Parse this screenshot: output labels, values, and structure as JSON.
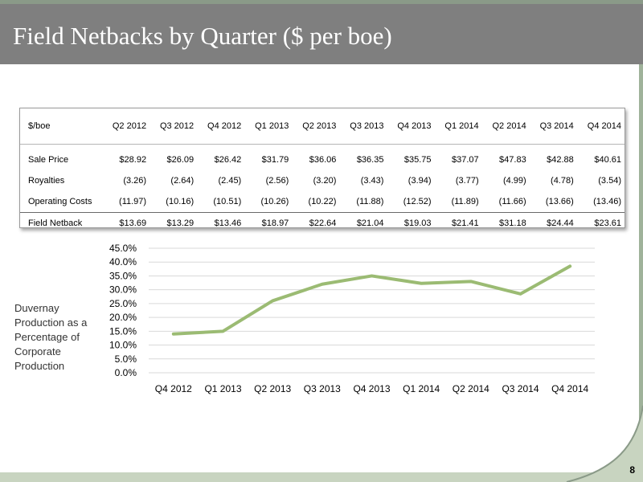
{
  "title": "Field Netbacks by Quarter ($ per boe)",
  "page_number": "8",
  "table": {
    "corner_label": "$/boe",
    "columns": [
      "Q2 2012",
      "Q3 2012",
      "Q4 2012",
      "Q1 2013",
      "Q2 2013",
      "Q3 2013",
      "Q4 2013",
      "Q1 2014",
      "Q2 2014",
      "Q3 2014",
      "Q4 2014"
    ],
    "rows": [
      {
        "label": "Sale Price",
        "values": [
          "$28.92",
          "$26.09",
          "$26.42",
          "$31.79",
          "$36.06",
          "$36.35",
          "$35.75",
          "$37.07",
          "$47.83",
          "$42.88",
          "$40.61"
        ]
      },
      {
        "label": "Royalties",
        "values": [
          "(3.26)",
          "(2.64)",
          "(2.45)",
          "(2.56)",
          "(3.20)",
          "(3.43)",
          "(3.94)",
          "(3.77)",
          "(4.99)",
          "(4.78)",
          "(3.54)"
        ]
      },
      {
        "label": "Operating Costs",
        "values": [
          "(11.97)",
          "(10.16)",
          "(10.51)",
          "(10.26)",
          "(10.22)",
          "(11.88)",
          "(12.52)",
          "(11.89)",
          "(11.66)",
          "(13.66)",
          "(13.46)"
        ]
      }
    ],
    "total_row": {
      "label": "Field Netback",
      "values": [
        "$13.69",
        "$13.29",
        "$13.46",
        "$18.97",
        "$22.64",
        "$21.04",
        "$19.03",
        "$21.41",
        "$31.18",
        "$24.44",
        "$23.61"
      ]
    }
  },
  "chart_side_label": "Duvernay Production as a Percentage of Corporate Production",
  "chart_data": {
    "type": "line",
    "categories": [
      "Q4 2012",
      "Q1 2013",
      "Q2 2013",
      "Q3 2013",
      "Q4 2013",
      "Q1 2014",
      "Q2 2014",
      "Q3 2014",
      "Q4 2014"
    ],
    "series": [
      {
        "values": [
          14.0,
          15.0,
          26.0,
          32.0,
          35.0,
          32.3,
          33.0,
          28.5,
          38.5
        ]
      }
    ],
    "yticks": [
      "0.0%",
      "5.0%",
      "10.0%",
      "15.0%",
      "20.0%",
      "25.0%",
      "30.0%",
      "35.0%",
      "40.0%",
      "45.0%"
    ],
    "ylim": [
      0,
      45
    ],
    "grid": true,
    "line_color": "#9bbb73"
  }
}
